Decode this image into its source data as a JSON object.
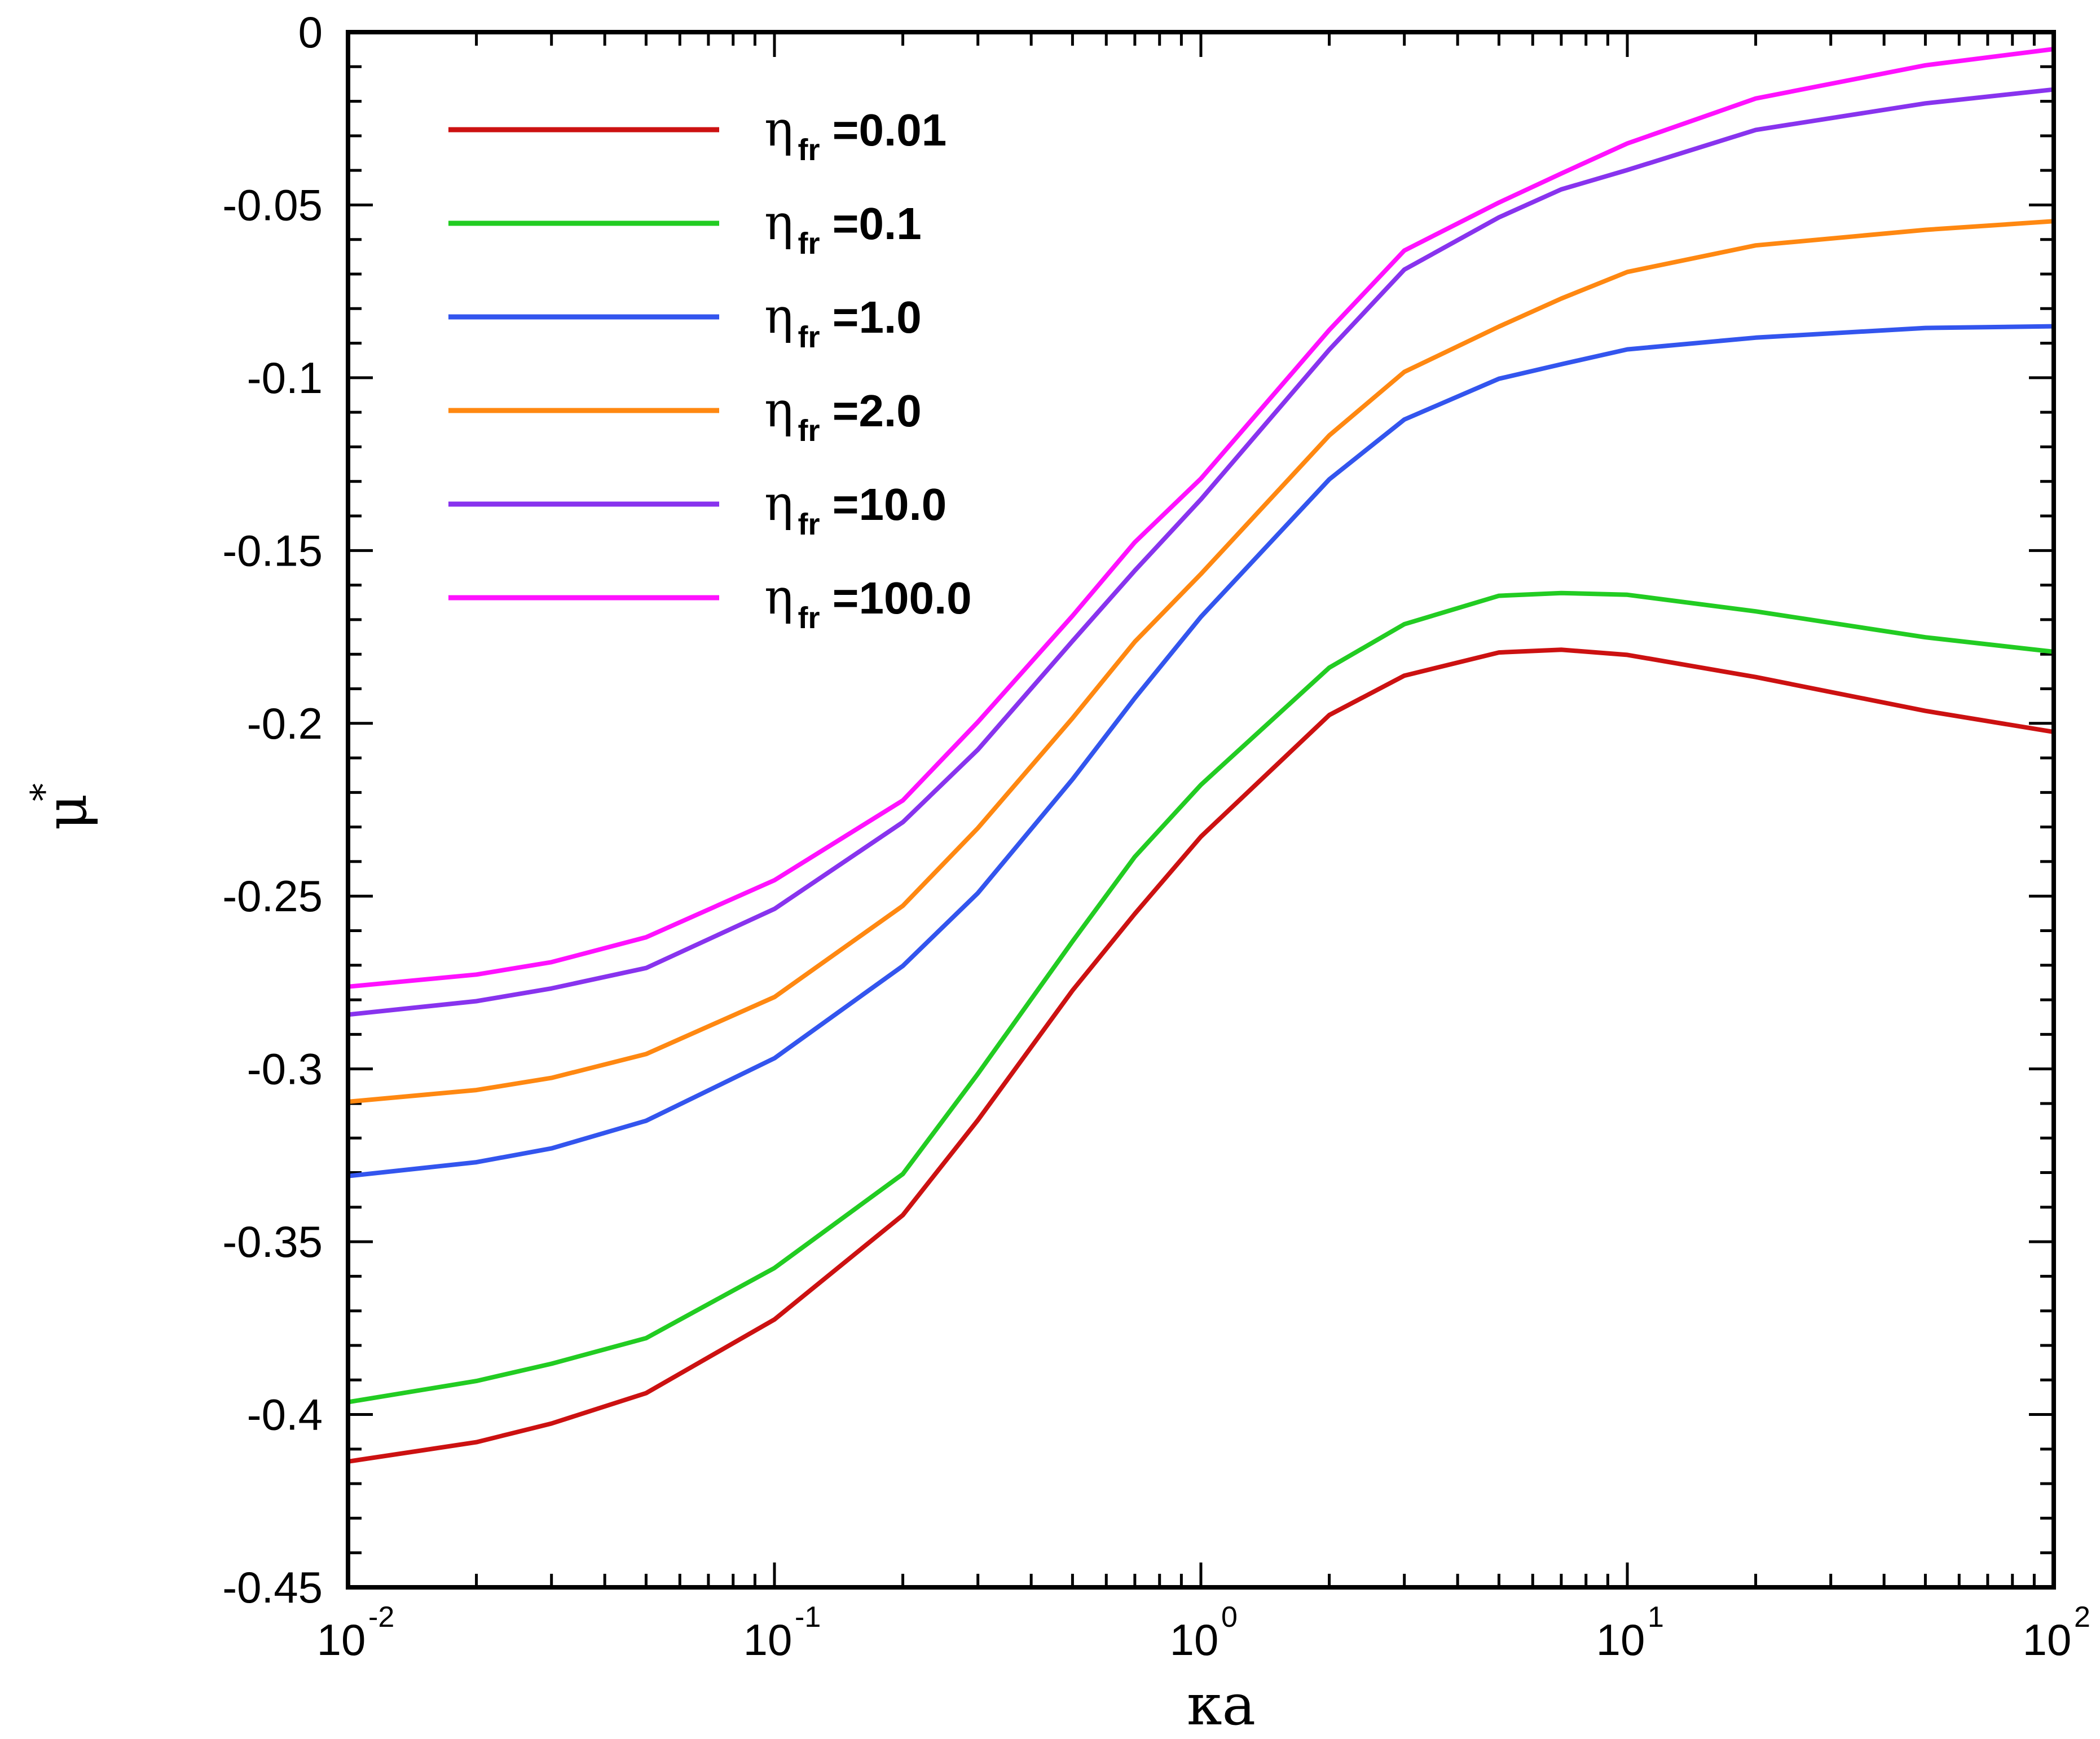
{
  "chart_data": {
    "type": "line",
    "xscale": "log",
    "xlim": [
      0.01,
      100
    ],
    "ylim": [
      -0.45,
      0
    ],
    "xlabel": "κa",
    "ylabel": "μ",
    "ylabel_superscript": "*",
    "xticks": [
      {
        "value": 0.01,
        "base": "10",
        "exp": "-2"
      },
      {
        "value": 0.1,
        "base": "10",
        "exp": "-1"
      },
      {
        "value": 1,
        "base": "10",
        "exp": "0"
      },
      {
        "value": 10,
        "base": "10",
        "exp": "1"
      },
      {
        "value": 100,
        "base": "10",
        "exp": "2"
      }
    ],
    "yticks": [
      {
        "value": 0,
        "label": "0"
      },
      {
        "value": -0.05,
        "label": "-0.05"
      },
      {
        "value": -0.1,
        "label": "-0.1"
      },
      {
        "value": -0.15,
        "label": "-0.15"
      },
      {
        "value": -0.2,
        "label": "-0.2"
      },
      {
        "value": -0.25,
        "label": "-0.25"
      },
      {
        "value": -0.3,
        "label": "-0.3"
      },
      {
        "value": -0.35,
        "label": "-0.35"
      },
      {
        "value": -0.4,
        "label": "-0.4"
      },
      {
        "value": -0.45,
        "label": "-0.45"
      }
    ],
    "legend_position": "top-left",
    "x": [
      0.01,
      0.02,
      0.03,
      0.05,
      0.1,
      0.2,
      0.3,
      0.5,
      0.7,
      1,
      2,
      3,
      5,
      7,
      10,
      20,
      50,
      100
    ],
    "series": [
      {
        "name": "η",
        "subscript": "fr",
        "value_text": " =0.01",
        "color": "#cc1111",
        "values": [
          -0.4136,
          -0.408,
          -0.4026,
          -0.3938,
          -0.3725,
          -0.3423,
          -0.3148,
          -0.2773,
          -0.2551,
          -0.2328,
          -0.1976,
          -0.1862,
          -0.1795,
          -0.1787,
          -0.1802,
          -0.1866,
          -0.1964,
          -0.2025
        ]
      },
      {
        "name": "η",
        "subscript": "fr",
        "value_text": " =0.1",
        "color": "#22cc22",
        "values": [
          -0.3964,
          -0.3903,
          -0.3853,
          -0.3779,
          -0.3576,
          -0.3304,
          -0.3014,
          -0.2631,
          -0.2386,
          -0.2178,
          -0.1839,
          -0.1713,
          -0.1631,
          -0.1623,
          -0.1628,
          -0.1676,
          -0.1751,
          -0.1793
        ]
      },
      {
        "name": "η",
        "subscript": "fr",
        "value_text": " =1.0",
        "color": "#3355ee",
        "values": [
          -0.331,
          -0.327,
          -0.323,
          -0.315,
          -0.2969,
          -0.2702,
          -0.2491,
          -0.2162,
          -0.1927,
          -0.1692,
          -0.1294,
          -0.1121,
          -0.1003,
          -0.0961,
          -0.0918,
          -0.0884,
          -0.0856,
          -0.0851
        ]
      },
      {
        "name": "η",
        "subscript": "fr",
        "value_text": " =2.0",
        "color": "#ff8811",
        "values": [
          -0.3095,
          -0.3061,
          -0.3026,
          -0.2957,
          -0.2792,
          -0.2528,
          -0.2303,
          -0.1985,
          -0.1764,
          -0.1568,
          -0.1167,
          -0.0983,
          -0.0852,
          -0.0771,
          -0.0694,
          -0.0617,
          -0.0572,
          -0.0547
        ]
      },
      {
        "name": "η",
        "subscript": "fr",
        "value_text": " =10.0",
        "color": "#8833ee",
        "values": [
          -0.2843,
          -0.2804,
          -0.2767,
          -0.2708,
          -0.2537,
          -0.2286,
          -0.2076,
          -0.1762,
          -0.1558,
          -0.1352,
          -0.0919,
          -0.0687,
          -0.0536,
          -0.0455,
          -0.0399,
          -0.0283,
          -0.0206,
          -0.0166
        ]
      },
      {
        "name": "η",
        "subscript": "fr",
        "value_text": " =100.0",
        "color": "#ff11ff",
        "values": [
          -0.2762,
          -0.2727,
          -0.2691,
          -0.2619,
          -0.2454,
          -0.2223,
          -0.1996,
          -0.1689,
          -0.1476,
          -0.1292,
          -0.0862,
          -0.0632,
          -0.0493,
          -0.0409,
          -0.0322,
          -0.0192,
          -0.0096,
          -0.0049
        ]
      }
    ]
  }
}
